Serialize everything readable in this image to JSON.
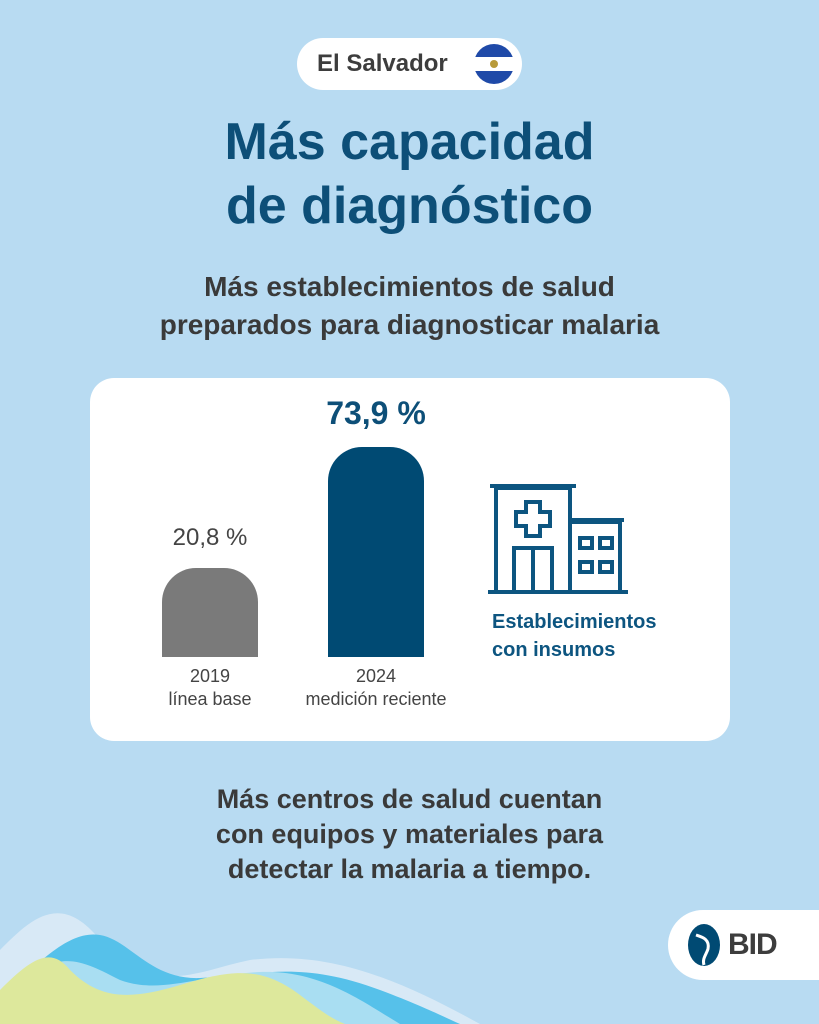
{
  "country": {
    "name": "El Salvador",
    "flag_icon": "el-salvador-flag"
  },
  "title": {
    "line1": "Más capacidad",
    "line2": "de diagnóstico"
  },
  "subtitle": {
    "line1": "Más establecimientos de salud",
    "line2": "preparados para diagnosticar malaria"
  },
  "chart_data": {
    "type": "bar",
    "categories": [
      "2019",
      "2024"
    ],
    "category_sublabels": [
      "línea base",
      "medición reciente"
    ],
    "values": [
      20.8,
      73.9
    ],
    "value_labels": [
      "20,8 %",
      "73,9 %"
    ],
    "colors": [
      "#7a7a7a",
      "#004a73"
    ],
    "unit": "%",
    "legend": "Establecimientos con insumos"
  },
  "legend": {
    "line1": "Establecimientos",
    "line2": "con insumos",
    "icon": "hospital-icon"
  },
  "footer_text": {
    "line1": "Más centros de salud cuentan",
    "line2": "con equipos y materiales para",
    "line3": "detectar la malaria a tiempo."
  },
  "logo": {
    "text": "BID"
  }
}
